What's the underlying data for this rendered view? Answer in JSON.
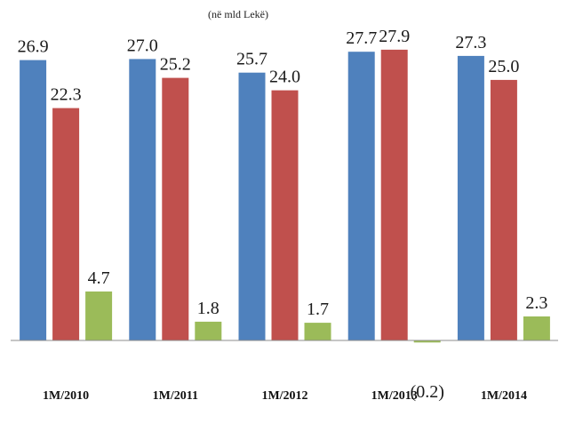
{
  "chart_data": {
    "type": "bar",
    "subtitle": "(në mld Lekë)",
    "categories": [
      "1M/2010",
      "1M/2011",
      "1M/2012",
      "1M/2013",
      "1M/2014"
    ],
    "series": [
      {
        "values": [
          26.9,
          27.0,
          25.7,
          27.7,
          27.3
        ],
        "labels": [
          "26.9",
          "27.0",
          "25.7",
          "27.7",
          "27.3"
        ],
        "color": "#4F81BD"
      },
      {
        "values": [
          22.3,
          25.2,
          24.0,
          27.9,
          25.0
        ],
        "labels": [
          "22.3",
          "25.2",
          "24.0",
          "27.9",
          "25.0"
        ],
        "color": "#C0504D"
      },
      {
        "values": [
          4.7,
          1.8,
          1.7,
          -0.2,
          2.3
        ],
        "labels": [
          "4.7",
          "1.8",
          "1.7",
          "(0.2)",
          "2.3"
        ],
        "color": "#9BBB59"
      }
    ],
    "ylim": [
      -0.2,
      29
    ],
    "grid": false,
    "legend": "none"
  }
}
